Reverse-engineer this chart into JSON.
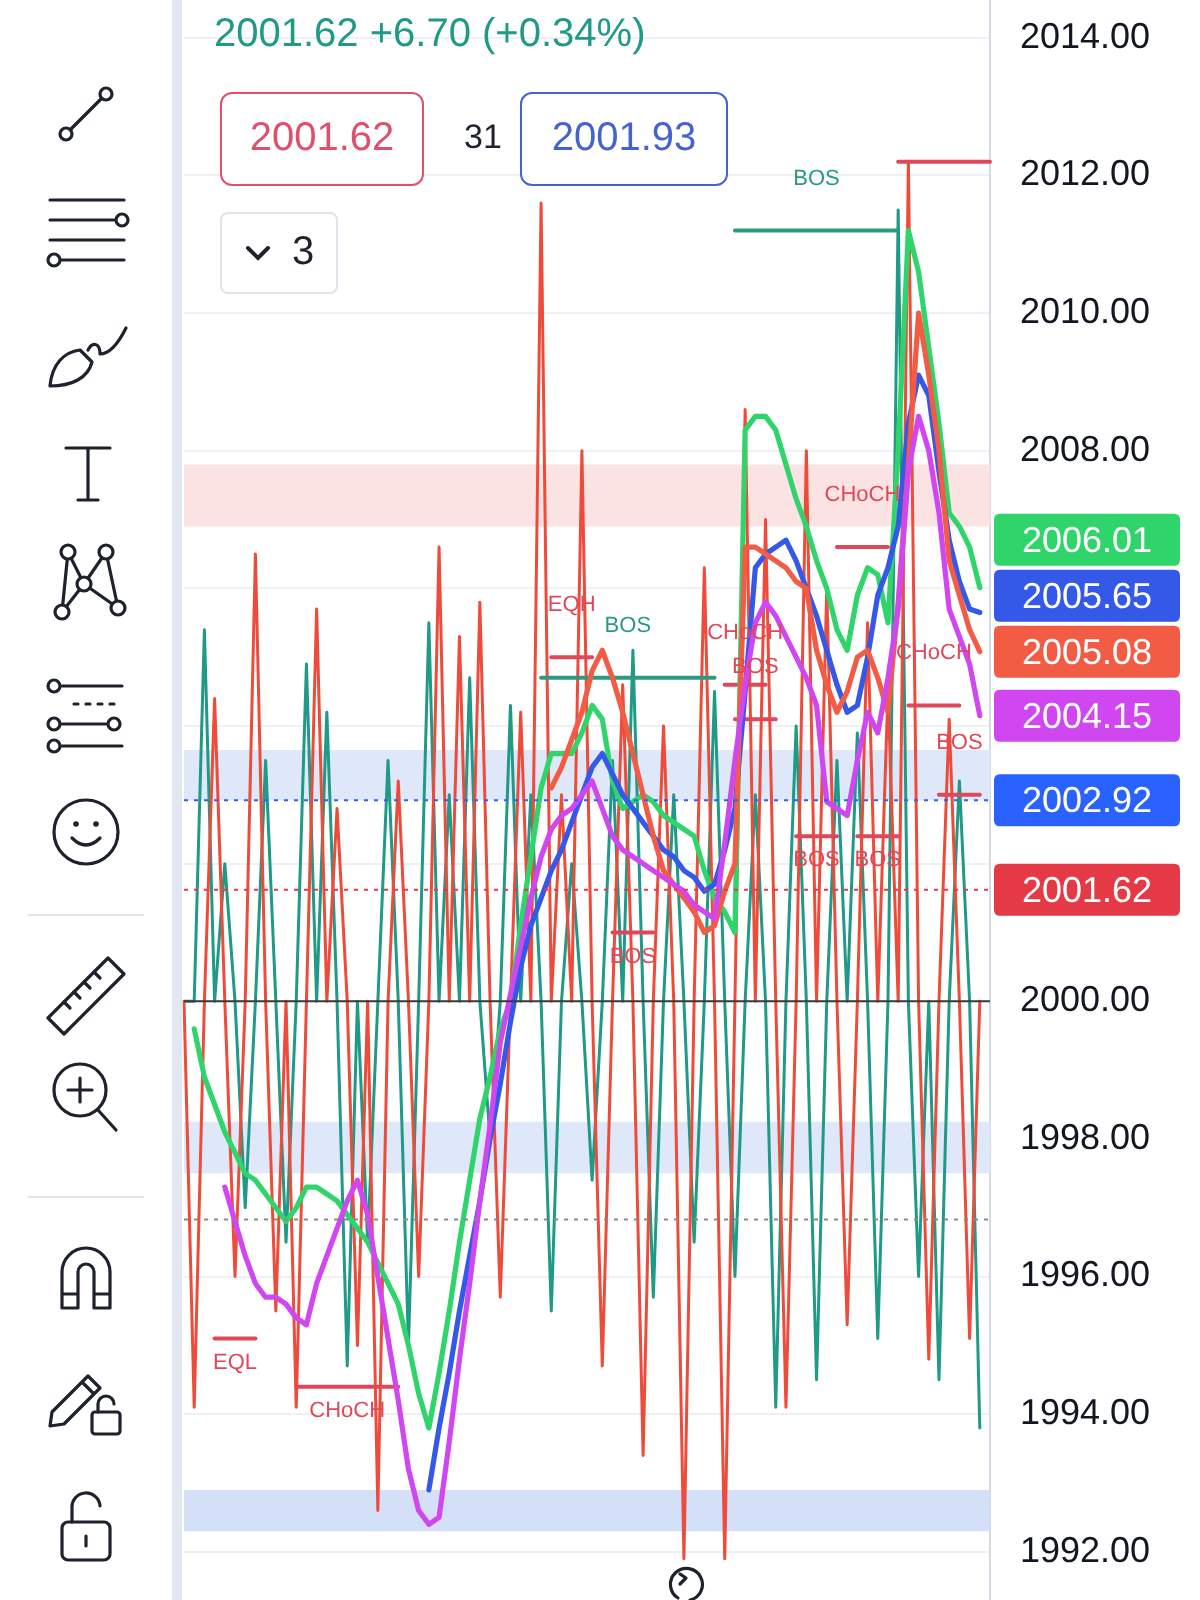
{
  "chart_data": {
    "type": "line",
    "title": "2001.62 +6.70 (+0.34%)",
    "annotations": [
      "2001.62",
      "31",
      "2001.93",
      "3"
    ],
    "categories": [
      null,
      null,
      null,
      null,
      null,
      null,
      null,
      null,
      null,
      null,
      null,
      null,
      null,
      null,
      null,
      null,
      null,
      null,
      null,
      null,
      null,
      null,
      null,
      null,
      null,
      null,
      null,
      null,
      null,
      null,
      null,
      null,
      null,
      null,
      null,
      null,
      null,
      null,
      null,
      null,
      null,
      null,
      null,
      null,
      null,
      null,
      null,
      null,
      null,
      null,
      null,
      null,
      null,
      null,
      null,
      null,
      null,
      null,
      null,
      null,
      null,
      null,
      null,
      null,
      null,
      null,
      null,
      null,
      null,
      null,
      null,
      null,
      null,
      null,
      null,
      null,
      null,
      null,
      null,
      null
    ],
    "ylim": [
      1991.3,
      2014.55
    ],
    "yticks": [
      {
        "value": 1992,
        "label": "1992.00"
      },
      {
        "value": 1994,
        "label": "1994.00"
      },
      {
        "value": 1996,
        "label": "1996.00"
      },
      {
        "value": 1998,
        "label": "1998.00"
      },
      {
        "value": 2000,
        "label": "2000.00"
      },
      {
        "value": 2002,
        "label": null
      },
      {
        "value": 2004,
        "label": null
      },
      {
        "value": 2006,
        "label": null
      },
      {
        "value": 2008,
        "label": "2008.00"
      },
      {
        "value": 2010,
        "label": "2010.00"
      },
      {
        "value": 2012,
        "label": "2012.00"
      },
      {
        "value": 2014,
        "label": "2014.00"
      }
    ],
    "tick_labels": "y",
    "grid": "y",
    "marker": "none",
    "line_style": "solid",
    "series": [
      {
        "color": "#1f9a86",
        "values": [
          2000,
          2000,
          2005.4,
          2000,
          2002.0,
          2000,
          1997.0,
          2000,
          2003.5,
          2000,
          1996.5,
          2000,
          2004.9,
          2000,
          2004.2,
          2000,
          1994.7,
          2000,
          1996.5,
          2000,
          2003.5,
          2000,
          1995.0,
          2000,
          2005.5,
          2000,
          2003.0,
          2000,
          2004.7,
          2000,
          1998.0,
          2000,
          2004.3,
          2000,
          2003.0,
          2000,
          1995.5,
          2000,
          2002.0,
          2000,
          1997.4,
          2000,
          2003.5,
          2000,
          2005.1,
          2000,
          1995.7,
          2000,
          2003.0,
          2000,
          1996.5,
          2000,
          2004.5,
          2000,
          1996.0,
          2000,
          2003.0,
          2000,
          1994.1,
          2000,
          2004.0,
          2000,
          1994.5,
          2000,
          2003.5,
          2000,
          2003.9,
          2000,
          1995.1,
          2000,
          2011.5,
          2000,
          1996.0,
          2000,
          1994.5,
          2000,
          2003.2,
          2000,
          1993.8,
          null
        ]
      },
      {
        "color": "#ee4b3a",
        "values": [
          2000,
          1994.1,
          2000,
          2004.4,
          2000,
          1996.0,
          2000,
          2006.5,
          2000,
          1995.5,
          2000,
          1994.1,
          2000,
          2005.7,
          2000,
          2002.8,
          2000,
          1995.0,
          2000,
          1992.6,
          2000,
          2003.2,
          2000,
          1996.0,
          2000,
          2006.6,
          2000,
          2005.3,
          2000,
          2005.8,
          2000,
          1995.7,
          2000,
          2004.2,
          2000,
          2011.6,
          2000,
          2003.0,
          2000,
          2008.0,
          2000,
          1994.7,
          2000,
          2004.6,
          2000,
          1993.4,
          2000,
          2004.0,
          2000,
          1991.9,
          2000,
          2006.3,
          2000,
          1991.9,
          2000,
          2008.6,
          2000,
          2007.0,
          2000,
          1994.1,
          2000,
          2008.0,
          2000,
          2006.0,
          2000,
          1995.3,
          2000,
          2005.5,
          2000,
          2004.5,
          2000,
          2012.2,
          2000,
          1994.8,
          2000,
          2004.1,
          2000,
          1995.1,
          2000,
          null
        ]
      },
      {
        "name": "BOS",
        "color": "#2b9a80",
        "values": [
          null,
          null,
          null,
          null,
          null,
          null,
          null,
          null,
          null,
          null,
          null,
          null,
          null,
          null,
          null,
          null,
          null,
          null,
          null,
          null,
          null,
          null,
          null,
          null,
          null,
          null,
          null,
          null,
          null,
          null,
          null,
          null,
          null,
          null,
          null,
          2004.7,
          2004.7,
          2004.7,
          2004.7,
          2004.7,
          2004.7,
          2004.7,
          2004.7,
          2004.7,
          2004.7,
          2004.7,
          2004.7,
          2004.7,
          2004.7,
          2004.7,
          2004.7,
          2004.7,
          2004.7,
          null,
          2011.2,
          2011.2,
          2011.2,
          2011.2,
          2011.2,
          2011.2,
          2011.2,
          2011.2,
          2011.2,
          2011.2,
          2011.2,
          2011.2,
          2011.2,
          2011.2,
          2011.2,
          2011.2,
          2011.2,
          null,
          null,
          null,
          null,
          null,
          null,
          null,
          null,
          null
        ]
      },
      {
        "color": "#e0485a",
        "values": [
          null,
          null,
          null,
          null,
          null,
          null,
          null,
          null,
          null,
          null,
          null,
          null,
          null,
          null,
          null,
          null,
          null,
          null,
          null,
          null,
          null,
          null,
          null,
          null,
          null,
          null,
          null,
          null,
          null,
          null,
          null,
          null,
          null,
          null,
          null,
          null,
          null,
          null,
          null,
          null,
          null,
          null,
          null,
          null,
          null,
          null,
          null,
          null,
          null,
          null,
          null,
          null,
          null,
          null,
          null,
          null,
          null,
          null,
          null,
          null,
          null,
          null,
          null,
          null,
          null,
          null,
          null,
          null,
          null,
          null,
          2012.2,
          2012.2,
          2012.2,
          2012.2,
          2012.2,
          2012.2,
          2012.2,
          2012.2,
          2012.2,
          2012.2
        ]
      },
      {
        "name": "CHoCH",
        "color": "#e0485a",
        "values": [
          null,
          null,
          null,
          null,
          null,
          null,
          null,
          null,
          null,
          null,
          null,
          1994.4,
          1994.4,
          1994.4,
          1994.4,
          1994.4,
          1994.4,
          1994.4,
          1994.4,
          1994.4,
          1994.4,
          1994.4,
          null,
          null,
          null,
          null,
          null,
          null,
          null,
          null,
          null,
          null,
          null,
          null,
          null,
          null,
          null,
          null,
          null,
          null,
          null,
          null,
          null,
          null,
          null,
          null,
          null,
          null,
          null,
          null,
          null,
          null,
          null,
          2004.6,
          2004.6,
          2004.6,
          2004.6,
          2004.6,
          null,
          null,
          null,
          null,
          null,
          null,
          2006.6,
          2006.6,
          2006.6,
          2006.6,
          2006.6,
          2006.6,
          null,
          2004.3,
          2004.3,
          2004.3,
          2004.3,
          2004.3,
          2004.3,
          null,
          null,
          null
        ]
      },
      {
        "name": "EQH",
        "color": "#e0485a",
        "values": [
          null,
          null,
          null,
          null,
          null,
          null,
          null,
          null,
          null,
          null,
          null,
          null,
          null,
          null,
          null,
          null,
          null,
          null,
          null,
          null,
          null,
          null,
          null,
          null,
          null,
          null,
          null,
          null,
          null,
          null,
          null,
          null,
          null,
          null,
          null,
          null,
          2005.0,
          2005.0,
          2005.0,
          2005.0,
          2005.0,
          null,
          null,
          null,
          null,
          null,
          null,
          null,
          null,
          null,
          null,
          null,
          null,
          null,
          null,
          null,
          null,
          null,
          null,
          null,
          null,
          null,
          null,
          null,
          null,
          null,
          null,
          null,
          null,
          null,
          null,
          null,
          null,
          null,
          null,
          null,
          null,
          null,
          null,
          null
        ]
      },
      {
        "name": "BOS",
        "color": "#e0485a",
        "values": [
          null,
          null,
          null,
          null,
          null,
          null,
          null,
          null,
          null,
          null,
          null,
          null,
          null,
          null,
          null,
          null,
          null,
          null,
          null,
          null,
          null,
          null,
          null,
          null,
          null,
          null,
          null,
          null,
          null,
          null,
          null,
          null,
          null,
          null,
          null,
          null,
          null,
          null,
          null,
          null,
          null,
          null,
          2001.0,
          2001.0,
          2001.0,
          2001.0,
          2001.0,
          null,
          null,
          null,
          null,
          null,
          null,
          null,
          2004.1,
          2004.1,
          2004.1,
          2004.1,
          2004.1,
          null,
          2002.4,
          2002.4,
          2002.4,
          2002.4,
          2002.4,
          null,
          null,
          null,
          null,
          null,
          null,
          null,
          null,
          null,
          2003.0,
          2003.0,
          2003.0,
          2003.0,
          2003.0,
          null
        ]
      },
      {
        "name": "BOS",
        "color": "#e0485a",
        "values": [
          null,
          null,
          null,
          null,
          null,
          null,
          null,
          null,
          null,
          null,
          null,
          null,
          null,
          null,
          null,
          null,
          null,
          null,
          null,
          null,
          null,
          null,
          null,
          null,
          null,
          null,
          null,
          null,
          null,
          null,
          null,
          null,
          null,
          null,
          null,
          null,
          null,
          null,
          null,
          null,
          null,
          null,
          null,
          null,
          null,
          null,
          null,
          null,
          null,
          null,
          null,
          null,
          null,
          null,
          null,
          null,
          null,
          null,
          null,
          null,
          null,
          null,
          null,
          null,
          null,
          null,
          2002.4,
          2002.4,
          2002.4,
          2002.4,
          2002.4,
          null,
          null,
          null,
          null,
          null,
          null,
          null,
          null,
          null
        ]
      },
      {
        "name": "EQL",
        "color": "#e0485a",
        "values": [
          null,
          null,
          null,
          1995.1,
          1995.1,
          1995.1,
          1995.1,
          1995.1,
          null,
          null,
          null,
          null,
          null,
          null,
          null,
          null,
          null,
          null,
          null,
          null,
          null,
          null,
          null,
          null,
          null,
          null,
          null,
          null,
          null,
          null,
          null,
          null,
          null,
          null,
          null,
          null,
          null,
          null,
          null,
          null,
          null,
          null,
          null,
          null,
          null,
          null,
          null,
          null,
          null,
          null,
          null,
          null,
          null,
          null,
          null,
          null,
          null,
          null,
          null,
          null,
          null,
          null,
          null,
          null,
          null,
          null,
          null,
          null,
          null,
          null,
          null,
          null,
          null,
          null,
          null,
          null,
          null,
          null,
          null,
          null
        ]
      },
      {
        "color": "#2fd46b",
        "values": [
          null,
          1999.6,
          1998.9,
          1998.5,
          1998.1,
          1997.8,
          1997.5,
          1997.4,
          1997.2,
          1997.0,
          1996.8,
          1997.0,
          1997.3,
          1997.3,
          1997.2,
          1997.1,
          1996.9,
          1996.7,
          1996.5,
          1996.2,
          1995.9,
          1995.6,
          1995.0,
          1994.3,
          1993.8,
          1994.6,
          1995.5,
          1996.5,
          1997.4,
          1998.3,
          1998.9,
          1999.6,
          2000.0,
          2001.1,
          2002.1,
          2003.1,
          2003.6,
          2003.6,
          2003.6,
          2003.9,
          2004.3,
          2004.1,
          2003.2,
          2002.8,
          2002.9,
          2003.0,
          2002.9,
          2002.7,
          2002.6,
          2002.5,
          2002.4,
          2001.9,
          2001.5,
          2001.3,
          2001.0,
          2008.3,
          2008.5,
          2008.5,
          2008.3,
          2007.8,
          2007.3,
          2006.9,
          2006.4,
          2006.0,
          2005.4,
          2005.1,
          2005.9,
          2006.3,
          2006.2,
          2005.5,
          2008.0,
          2011.2,
          2010.6,
          2009.5,
          2008.4,
          2007.1,
          2006.9,
          2006.6,
          2006.01,
          null
        ],
        "value_labels": [
          null,
          null,
          null,
          null,
          null,
          null,
          null,
          null,
          null,
          null,
          null,
          null,
          null,
          null,
          null,
          null,
          null,
          null,
          null,
          null,
          null,
          null,
          null,
          null,
          null,
          null,
          null,
          null,
          null,
          null,
          null,
          null,
          null,
          null,
          null,
          null,
          null,
          null,
          null,
          null,
          null,
          null,
          null,
          null,
          null,
          null,
          null,
          null,
          null,
          null,
          null,
          null,
          null,
          null,
          null,
          null,
          null,
          null,
          null,
          null,
          null,
          null,
          null,
          null,
          null,
          null,
          null,
          null,
          null,
          null,
          null,
          null,
          null,
          null,
          null,
          null,
          null,
          null,
          "2006.01",
          null
        ]
      },
      {
        "color": "#3458e8",
        "values": [
          null,
          null,
          null,
          null,
          null,
          null,
          null,
          null,
          null,
          null,
          null,
          null,
          null,
          null,
          null,
          null,
          null,
          null,
          null,
          null,
          null,
          null,
          null,
          null,
          1992.9,
          1993.8,
          1994.6,
          1995.5,
          1996.3,
          1997.1,
          1998.0,
          1998.8,
          1999.7,
          2000.5,
          2001.1,
          2001.5,
          2001.9,
          2002.2,
          2002.6,
          2003.0,
          2003.4,
          2003.6,
          2003.3,
          2003.0,
          2002.8,
          2002.6,
          2002.4,
          2002.2,
          2002.1,
          2001.9,
          2001.8,
          2001.6,
          2001.7,
          2002.2,
          2002.8,
          2004.5,
          2006.3,
          2006.5,
          2006.6,
          2006.7,
          2006.4,
          2006.0,
          2005.6,
          2005.1,
          2004.6,
          2004.2,
          2004.3,
          2005.0,
          2005.9,
          2006.3,
          2006.9,
          2008.4,
          2009.1,
          2008.8,
          2007.7,
          2006.7,
          2006.1,
          2005.7,
          2005.65,
          null
        ],
        "value_labels": [
          null,
          null,
          null,
          null,
          null,
          null,
          null,
          null,
          null,
          null,
          null,
          null,
          null,
          null,
          null,
          null,
          null,
          null,
          null,
          null,
          null,
          null,
          null,
          null,
          null,
          null,
          null,
          null,
          null,
          null,
          null,
          null,
          null,
          null,
          null,
          null,
          null,
          null,
          null,
          null,
          null,
          null,
          null,
          null,
          null,
          null,
          null,
          null,
          null,
          null,
          null,
          null,
          null,
          null,
          null,
          null,
          null,
          null,
          null,
          null,
          null,
          null,
          null,
          null,
          null,
          null,
          null,
          null,
          null,
          null,
          null,
          null,
          null,
          null,
          null,
          null,
          null,
          null,
          "2005.65",
          null
        ]
      },
      {
        "color": "#f25c45",
        "values": [
          null,
          null,
          null,
          null,
          null,
          null,
          null,
          null,
          null,
          null,
          null,
          null,
          null,
          null,
          null,
          null,
          null,
          null,
          null,
          null,
          null,
          null,
          null,
          null,
          null,
          null,
          null,
          null,
          null,
          null,
          null,
          null,
          null,
          null,
          null,
          null,
          2003.1,
          2003.4,
          2003.8,
          2004.2,
          2004.8,
          2005.1,
          2004.7,
          2004.2,
          2003.6,
          2003.0,
          2002.4,
          2001.9,
          2001.7,
          2001.5,
          2001.3,
          2001.0,
          2001.1,
          2001.6,
          2002.0,
          2006.6,
          2006.6,
          2006.5,
          2006.4,
          2006.3,
          2006.1,
          2006.0,
          2005.1,
          2004.6,
          2004.2,
          2004.5,
          2005.0,
          2005.1,
          2004.7,
          2004.2,
          2005.8,
          2007.8,
          2010.0,
          2009.1,
          2008.0,
          2006.4,
          2005.9,
          2005.4,
          2005.08,
          null
        ],
        "value_labels": [
          null,
          null,
          null,
          null,
          null,
          null,
          null,
          null,
          null,
          null,
          null,
          null,
          null,
          null,
          null,
          null,
          null,
          null,
          null,
          null,
          null,
          null,
          null,
          null,
          null,
          null,
          null,
          null,
          null,
          null,
          null,
          null,
          null,
          null,
          null,
          null,
          null,
          null,
          null,
          null,
          null,
          null,
          null,
          null,
          null,
          null,
          null,
          null,
          null,
          null,
          null,
          null,
          null,
          null,
          null,
          null,
          null,
          null,
          null,
          null,
          null,
          null,
          null,
          null,
          null,
          null,
          null,
          null,
          null,
          null,
          null,
          null,
          null,
          null,
          null,
          null,
          null,
          null,
          "2005.08",
          null
        ]
      },
      {
        "color": "#d046f0",
        "values": [
          null,
          null,
          null,
          null,
          1997.3,
          1996.8,
          1996.3,
          1995.9,
          1995.7,
          1995.7,
          1995.6,
          1995.4,
          1995.3,
          1995.9,
          1996.3,
          1996.7,
          1997.1,
          1997.4,
          1996.9,
          1996.0,
          1995.1,
          1994.2,
          1993.2,
          1992.6,
          1992.4,
          1992.5,
          1993.6,
          1994.8,
          1995.9,
          1997.1,
          1998.2,
          1999.4,
          2000.1,
          2000.8,
          2001.5,
          2002.1,
          2002.5,
          2002.7,
          2002.8,
          2003.0,
          2003.2,
          2002.8,
          2002.4,
          2002.2,
          2002.1,
          2002.0,
          2001.9,
          2001.8,
          2001.7,
          2001.6,
          2001.4,
          2001.3,
          2001.2,
          2002.3,
          2003.5,
          2004.6,
          2005.5,
          2005.8,
          2005.6,
          2005.3,
          2005.0,
          2004.7,
          2004.3,
          2002.9,
          2002.8,
          2002.7,
          2003.5,
          2004.2,
          2003.9,
          2004.7,
          2005.7,
          2007.7,
          2008.5,
          2008.0,
          2007.1,
          2005.7,
          2005.3,
          2004.9,
          2004.15,
          null
        ],
        "value_labels": [
          null,
          null,
          null,
          null,
          null,
          null,
          null,
          null,
          null,
          null,
          null,
          null,
          null,
          null,
          null,
          null,
          null,
          null,
          null,
          null,
          null,
          null,
          null,
          null,
          null,
          null,
          null,
          null,
          null,
          null,
          null,
          null,
          null,
          null,
          null,
          null,
          null,
          null,
          null,
          null,
          null,
          null,
          null,
          null,
          null,
          null,
          null,
          null,
          null,
          null,
          null,
          null,
          null,
          null,
          null,
          null,
          null,
          null,
          null,
          null,
          null,
          null,
          null,
          null,
          null,
          null,
          null,
          null,
          null,
          null,
          null,
          null,
          null,
          null,
          null,
          null,
          null,
          null,
          "2004.15",
          null
        ]
      }
    ],
    "ref_lines": [
      {
        "axis": "y",
        "value": 2002.92,
        "label": "2002.92",
        "color": "#2962ff",
        "line_style": "dotted"
      },
      {
        "axis": "y",
        "value": 2001.62,
        "label": "2001.62",
        "color": "#e53945",
        "line_style": "dotted"
      },
      {
        "axis": "y",
        "value": 1996.83,
        "color": "#8a8a8a",
        "line_style": "dotted"
      },
      {
        "axis": "y",
        "value": 2000,
        "color": "#3a3a3a",
        "line_style": "solid"
      }
    ],
    "bands": [
      {
        "axis": "y",
        "from": 1992.3,
        "to": 1992.9,
        "color": "#d3e0f8"
      },
      {
        "axis": "y",
        "from": 1997.5,
        "to": 1998.25,
        "color": "#dfe8f9"
      },
      {
        "axis": "y",
        "from": 2002.92,
        "to": 2003.65,
        "color": "#dfe8f9"
      },
      {
        "axis": "y",
        "from": 2006.9,
        "to": 2007.8,
        "color": "#fbe3e3"
      }
    ]
  }
}
